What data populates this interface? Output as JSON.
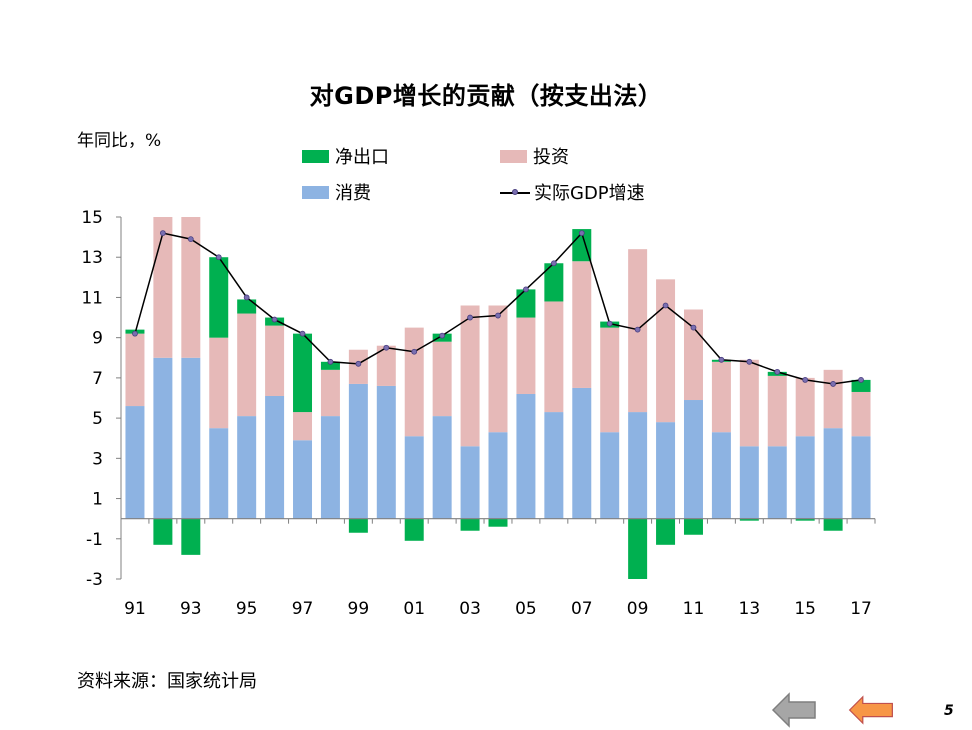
{
  "title": "对GDP增长的贡献（按支出法）",
  "source": "资料来源：国家统计局",
  "page_number": "5",
  "nav": {
    "back_label": "",
    "forward_label": ""
  },
  "colors": {
    "net_exports": "#00b050",
    "investment": "#e6b9b8",
    "consumption": "#8db3e2",
    "gdp_line": "#000000",
    "marker": "#7a6fb0",
    "nav_gray": "#a6a6a6",
    "nav_orange": "#f79646"
  },
  "chart_data": {
    "type": "bar",
    "stacked": true,
    "ylabel": "年同比，%",
    "ylim": [
      -3,
      15
    ],
    "yticks": [
      -3,
      -1,
      1,
      3,
      5,
      7,
      9,
      11,
      13,
      15
    ],
    "legend_position": "top",
    "x": [
      1991,
      1992,
      1993,
      1994,
      1995,
      1996,
      1997,
      1998,
      1999,
      2000,
      2001,
      2002,
      2003,
      2004,
      2005,
      2006,
      2007,
      2008,
      2009,
      2010,
      2011,
      2012,
      2013,
      2014,
      2015,
      2016,
      2017
    ],
    "xticklabels": [
      "91",
      "93",
      "95",
      "97",
      "99",
      "01",
      "03",
      "05",
      "07",
      "09",
      "11",
      "13",
      "15",
      "17"
    ],
    "series": [
      {
        "name": "消费",
        "type": "bar",
        "values": [
          5.6,
          8.0,
          8.0,
          4.5,
          5.1,
          6.1,
          3.9,
          5.1,
          6.7,
          6.6,
          4.1,
          5.1,
          3.6,
          4.3,
          6.2,
          5.3,
          6.5,
          4.3,
          5.3,
          4.8,
          5.9,
          4.3,
          3.6,
          3.6,
          4.1,
          4.5,
          4.1
        ]
      },
      {
        "name": "投资",
        "type": "bar",
        "values": [
          3.6,
          7.0,
          7.0,
          4.5,
          5.1,
          3.5,
          1.4,
          2.3,
          1.7,
          2.0,
          5.4,
          3.7,
          7.0,
          6.3,
          3.8,
          5.5,
          6.3,
          5.2,
          8.1,
          7.1,
          4.5,
          3.5,
          4.3,
          3.5,
          2.9,
          2.9,
          2.2
        ]
      },
      {
        "name": "净出口",
        "type": "bar",
        "values": [
          0.2,
          -1.3,
          -1.8,
          4.0,
          0.7,
          0.4,
          3.9,
          0.4,
          -0.7,
          0.0,
          -1.1,
          0.4,
          -0.6,
          -0.4,
          1.4,
          1.9,
          1.6,
          0.3,
          -3.0,
          -1.3,
          -0.8,
          0.1,
          -0.1,
          0.2,
          -0.1,
          -0.6,
          0.6
        ]
      },
      {
        "name": "实际GDP增速",
        "type": "line",
        "values": [
          9.2,
          14.2,
          13.9,
          13.0,
          11.0,
          9.9,
          9.2,
          7.8,
          7.7,
          8.5,
          8.3,
          9.1,
          10.0,
          10.1,
          11.4,
          12.7,
          14.2,
          9.7,
          9.4,
          10.6,
          9.5,
          7.9,
          7.8,
          7.3,
          6.9,
          6.7,
          6.9
        ]
      }
    ]
  }
}
